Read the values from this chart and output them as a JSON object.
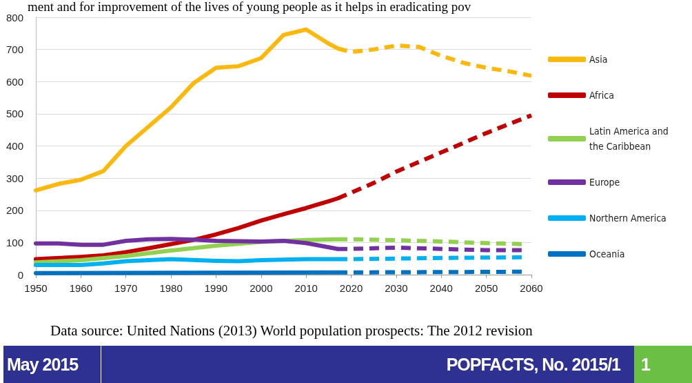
{
  "chart_data": {
    "type": "line",
    "annotations": [
      "ment and for improvement of the lives of young people as it helps in eradicating pov",
      "Data source: United Nations (2013) World population prospects: The 2012 revision",
      "May 2015",
      "POPFACTS, No. 2015/1",
      "1"
    ],
    "xlim": [
      1950,
      2060
    ],
    "xticks": [
      1950,
      1960,
      1970,
      1980,
      1990,
      2000,
      2010,
      2020,
      2030,
      2040,
      2050,
      2060
    ],
    "ylim": [
      0,
      800
    ],
    "yticks": [
      0,
      100,
      200,
      300,
      400,
      500,
      600,
      700,
      800
    ],
    "grid": "y",
    "legend": "right",
    "series": [
      {
        "name": "Asia",
        "color": "#fbb80f",
        "line_style": "solid",
        "x": [
          1950,
          1955,
          1960,
          1965,
          1970,
          1975,
          1980,
          1985,
          1990,
          1995,
          2000,
          2005,
          2010,
          2015,
          2017
        ],
        "values": [
          262,
          282,
          295,
          322,
          400,
          460,
          520,
          595,
          643,
          648,
          673,
          745,
          762,
          718,
          703
        ]
      },
      {
        "name": "Africa",
        "color": "#c00000",
        "line_style": "solid",
        "x": [
          1950,
          1960,
          1965,
          1970,
          1975,
          1980,
          1985,
          1990,
          1995,
          2000,
          2005,
          2010,
          2015,
          2017
        ],
        "values": [
          48,
          55,
          60,
          70,
          82,
          95,
          108,
          125,
          145,
          168,
          188,
          207,
          228,
          237
        ]
      },
      {
        "name": "Latin America and the Caribbean",
        "color": "#92d050",
        "line_style": "solid",
        "x": [
          1950,
          1960,
          1970,
          1980,
          1990,
          2000,
          2010,
          2017
        ],
        "values": [
          38,
          45,
          58,
          75,
          90,
          102,
          108,
          110
        ]
      },
      {
        "name": "Europe",
        "color": "#7030a0",
        "line_style": "solid",
        "x": [
          1950,
          1955,
          1960,
          1965,
          1970,
          1975,
          1980,
          1985,
          1990,
          2000,
          2005,
          2010,
          2017
        ],
        "values": [
          97,
          97,
          93,
          93,
          105,
          110,
          111,
          109,
          105,
          103,
          105,
          98,
          80
        ]
      },
      {
        "name": "Northern America",
        "color": "#00b0f0",
        "line_style": "solid",
        "x": [
          1950,
          1960,
          1965,
          1970,
          1980,
          1990,
          1995,
          2000,
          2010,
          2017
        ],
        "values": [
          30,
          30,
          35,
          42,
          48,
          43,
          42,
          45,
          48,
          48
        ]
      },
      {
        "name": "Oceania",
        "color": "#0070c0",
        "line_style": "solid",
        "x": [
          1950,
          1980,
          2017
        ],
        "values": [
          5,
          6,
          7
        ]
      },
      {
        "color": "#fbb80f",
        "line_style": "dashed",
        "x": [
          2017,
          2020,
          2025,
          2030,
          2035,
          2040,
          2045,
          2050,
          2055,
          2060
        ],
        "values": [
          703,
          692,
          700,
          712,
          708,
          680,
          658,
          643,
          632,
          618
        ]
      },
      {
        "color": "#c00000",
        "line_style": "dashed",
        "x": [
          2017,
          2020,
          2025,
          2030,
          2035,
          2040,
          2045,
          2050,
          2055,
          2060
        ],
        "values": [
          237,
          255,
          285,
          320,
          350,
          380,
          410,
          440,
          468,
          495
        ]
      },
      {
        "color": "#92d050",
        "line_style": "dashed",
        "x": [
          2017,
          2020,
          2030,
          2040,
          2050,
          2058
        ],
        "values": [
          110,
          110,
          107,
          103,
          98,
          95
        ]
      },
      {
        "color": "#7030a0",
        "line_style": "dashed",
        "x": [
          2017,
          2020,
          2030,
          2040,
          2050,
          2058
        ],
        "values": [
          80,
          80,
          84,
          80,
          76,
          76
        ]
      },
      {
        "color": "#00b0f0",
        "line_style": "dashed",
        "x": [
          2017,
          2020,
          2030,
          2040,
          2050,
          2058
        ],
        "values": [
          48,
          48,
          50,
          52,
          53,
          54
        ]
      },
      {
        "color": "#0070c0",
        "line_style": "dashed",
        "x": [
          2017,
          2020,
          2040,
          2058
        ],
        "values": [
          7,
          7,
          8,
          9
        ]
      }
    ]
  }
}
